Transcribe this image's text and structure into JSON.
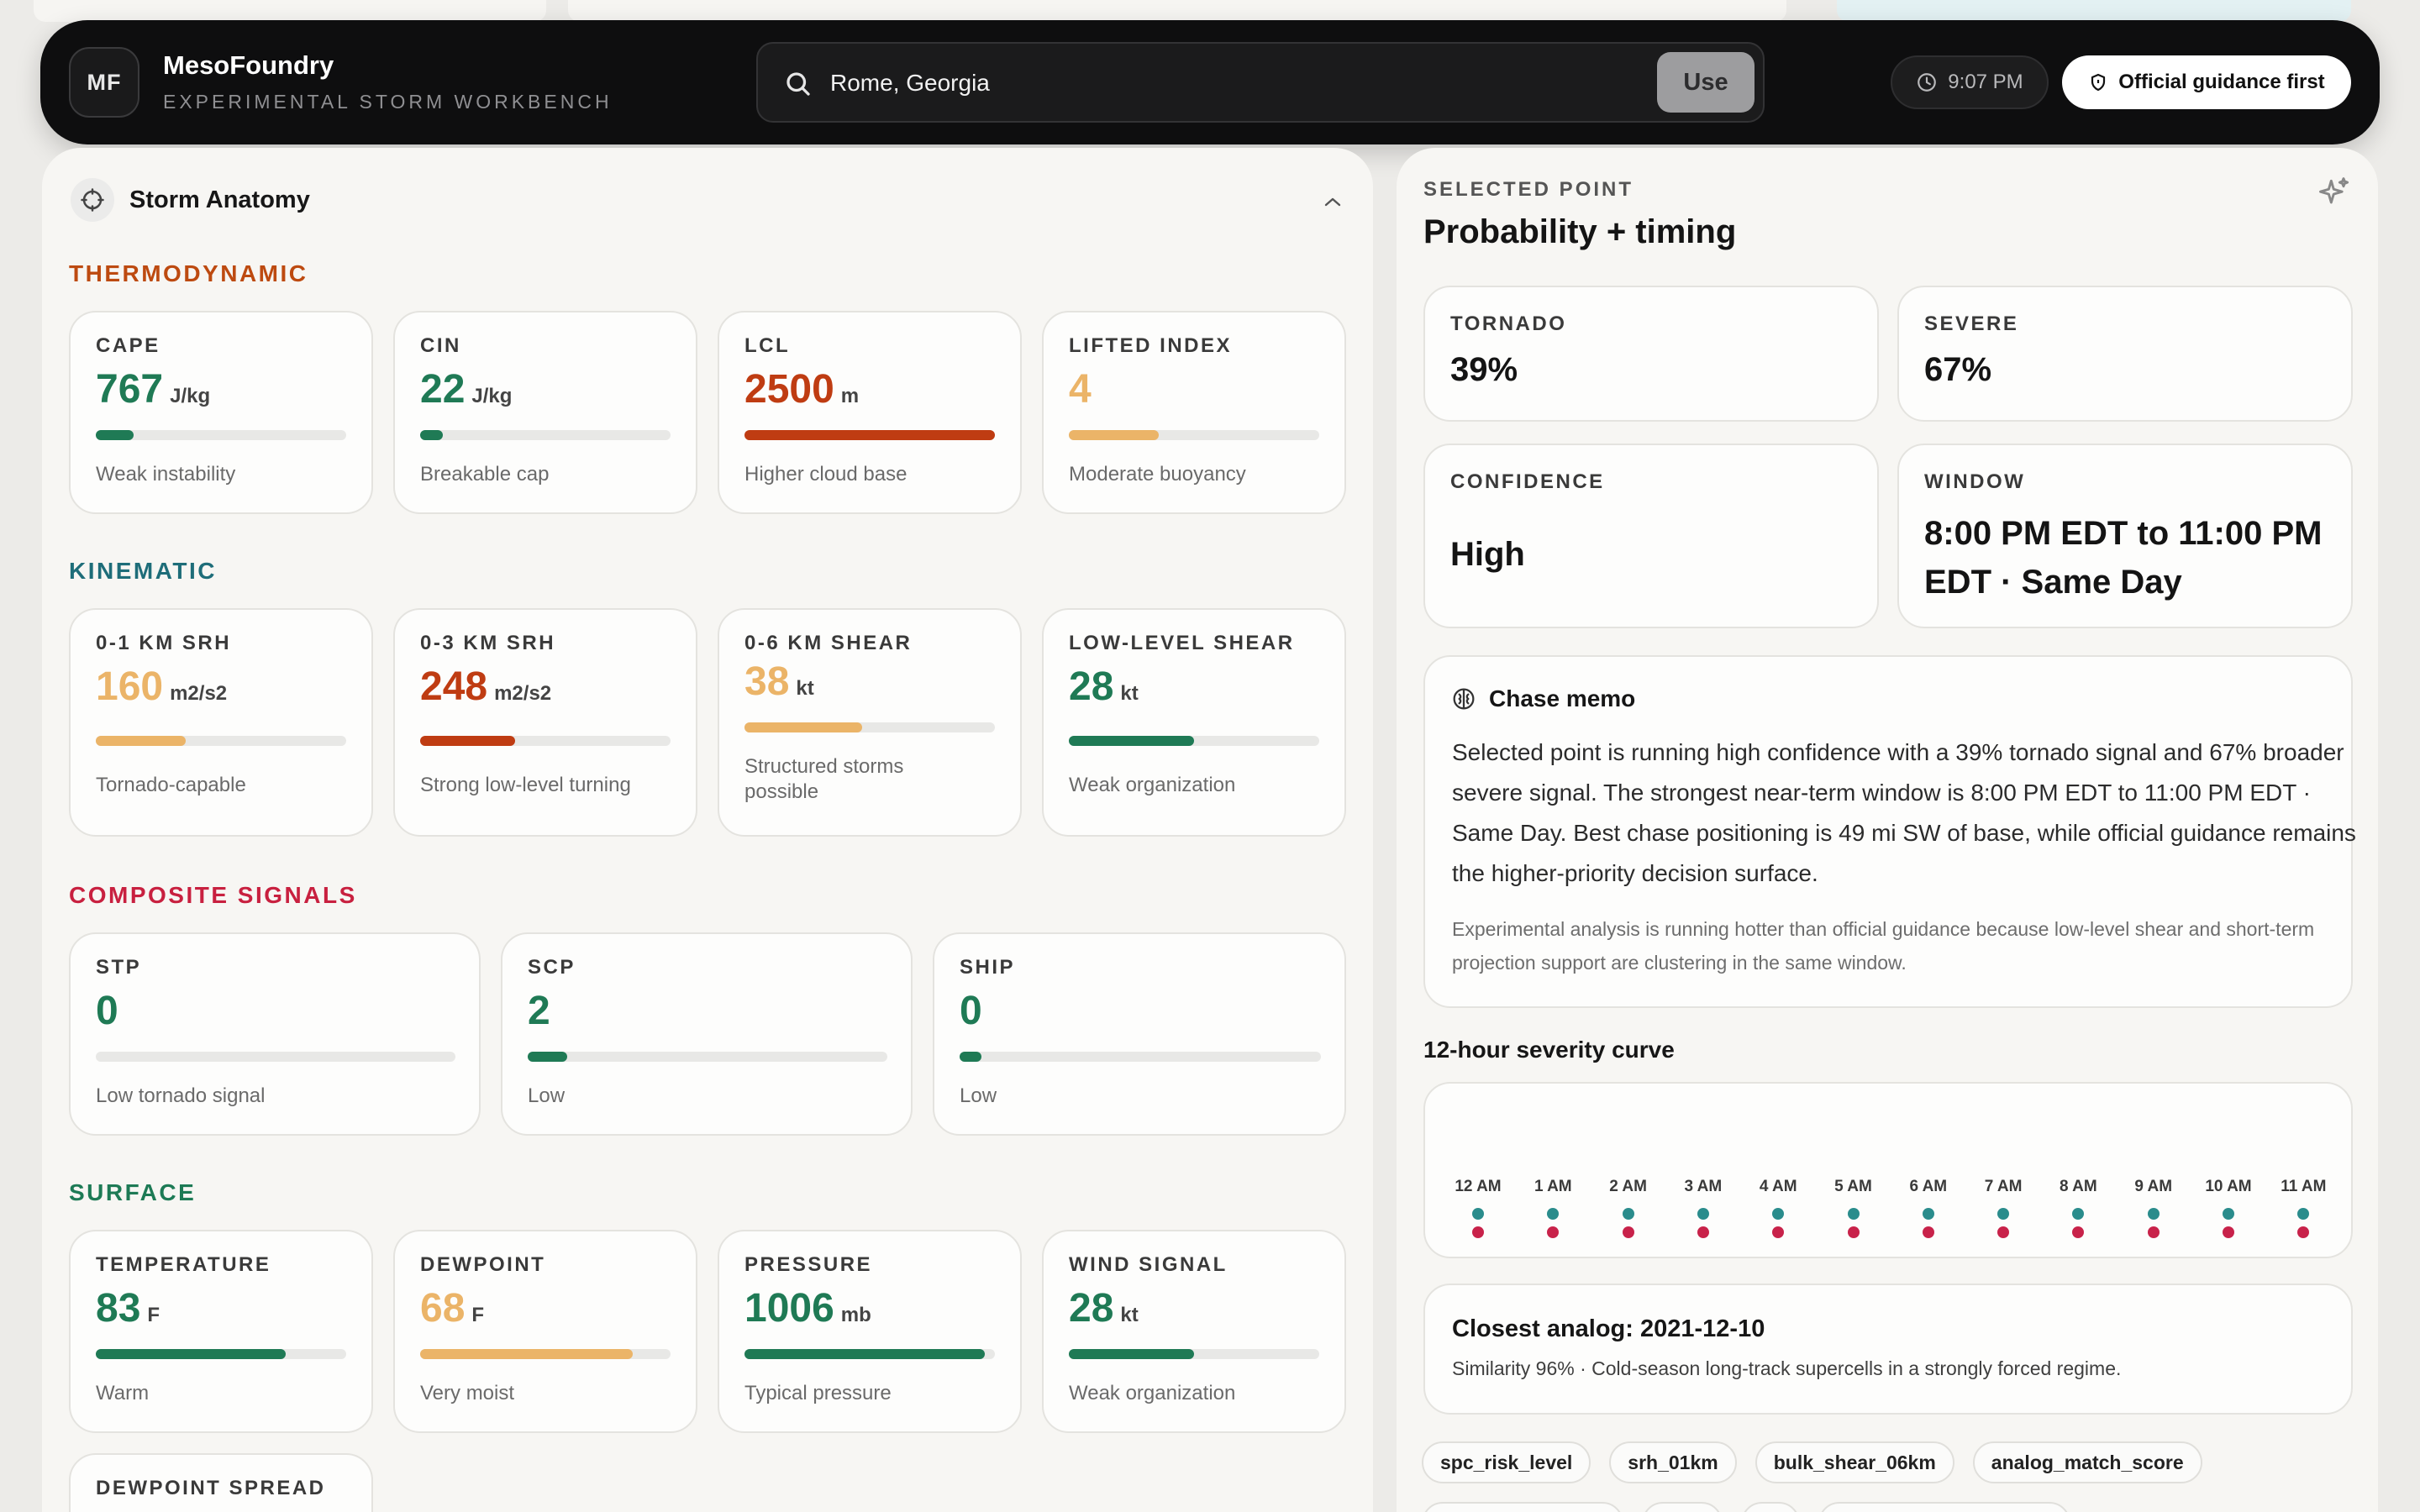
{
  "colors": {
    "green": "#1f7a55",
    "orange": "#ebb468",
    "rust": "#bf3c12",
    "teal_label": "#1e6d79",
    "crimson_label": "#c8203f",
    "surface_label": "#1d7a55",
    "thermo_label": "#bd4a10",
    "dot_teal": "#2a8c8c",
    "dot_crimson": "#c8224a"
  },
  "brand": {
    "badge": "MF",
    "name": "MesoFoundry",
    "subtitle": "EXPERIMENTAL STORM WORKBENCH"
  },
  "search": {
    "value": "Rome, Georgia",
    "use_label": "Use"
  },
  "time": "9:07 PM",
  "guidance_button": "Official guidance first",
  "anatomy": {
    "title": "Storm Anatomy",
    "groups": {
      "thermodynamic": {
        "label": "THERMODYNAMIC",
        "cards": [
          {
            "label": "CAPE",
            "value": "767",
            "unit": "J/kg",
            "note": "Weak instability",
            "fill": 0.15,
            "color": "green"
          },
          {
            "label": "CIN",
            "value": "22",
            "unit": "J/kg",
            "note": "Breakable cap",
            "fill": 0.09,
            "color": "green"
          },
          {
            "label": "LCL",
            "value": "2500",
            "unit": "m",
            "note": "Higher cloud base",
            "fill": 1.0,
            "color": "rust"
          },
          {
            "label": "LIFTED INDEX",
            "value": "4",
            "unit": "",
            "note": "Moderate buoyancy",
            "fill": 0.36,
            "color": "orange"
          }
        ]
      },
      "kinematic": {
        "label": "KINEMATIC",
        "cards": [
          {
            "label": "0-1 KM SRH",
            "value": "160",
            "unit": "m2/s2",
            "note": "Tornado-capable",
            "fill": 0.36,
            "color": "orange"
          },
          {
            "label": "0-3 KM SRH",
            "value": "248",
            "unit": "m2/s2",
            "note": "Strong low-level turning",
            "fill": 0.38,
            "color": "rust"
          },
          {
            "label": "0-6 KM SHEAR",
            "value": "38",
            "unit": "kt",
            "note": "Structured storms possible",
            "fill": 0.47,
            "color": "orange"
          },
          {
            "label": "LOW-LEVEL SHEAR",
            "value": "28",
            "unit": "kt",
            "note": "Weak organization",
            "fill": 0.5,
            "color": "green"
          }
        ]
      },
      "composite": {
        "label": "COMPOSITE SIGNALS",
        "cards": [
          {
            "label": "STP",
            "value": "0",
            "unit": "",
            "note": "Low tornado signal",
            "fill": 0.0,
            "color": "green"
          },
          {
            "label": "SCP",
            "value": "2",
            "unit": "",
            "note": "Low",
            "fill": 0.11,
            "color": "green"
          },
          {
            "label": "SHIP",
            "value": "0",
            "unit": "",
            "note": "Low",
            "fill": 0.06,
            "color": "green"
          }
        ]
      },
      "surface": {
        "label": "SURFACE",
        "cards": [
          {
            "label": "TEMPERATURE",
            "value": "83",
            "unit": "F",
            "note": "Warm",
            "fill": 0.76,
            "color": "green"
          },
          {
            "label": "DEWPOINT",
            "value": "68",
            "unit": "F",
            "note": "Very moist",
            "fill": 0.85,
            "color": "orange"
          },
          {
            "label": "PRESSURE",
            "value": "1006",
            "unit": "mb",
            "note": "Typical pressure",
            "fill": 0.96,
            "color": "green"
          },
          {
            "label": "WIND SIGNAL",
            "value": "28",
            "unit": "kt",
            "note": "Weak organization",
            "fill": 0.5,
            "color": "green"
          }
        ]
      },
      "spread": {
        "label": "DEWPOINT SPREAD"
      }
    }
  },
  "selected": {
    "eyebrow": "SELECTED POINT",
    "title": "Probability + timing",
    "tornado": {
      "label": "TORNADO",
      "value": "39%"
    },
    "severe": {
      "label": "SEVERE",
      "value": "67%"
    },
    "confidence": {
      "label": "CONFIDENCE",
      "value": "High"
    },
    "window": {
      "label": "WINDOW",
      "line1": "8:00 PM EDT to 11:00 PM",
      "line2": "EDT · Same Day"
    }
  },
  "memo": {
    "title": "Chase memo",
    "body": "Selected point is running high confidence with a 39% tornado signal and 67% broader severe signal. The strongest near-term window is 8:00 PM EDT to 11:00 PM EDT · Same Day. Best chase positioning is 49 mi SW of base, while official guidance remains the higher-priority decision surface.",
    "footnote": "Experimental analysis is running hotter than official guidance because low-level shear and short-term projection support are clustering in the same window."
  },
  "curve": {
    "title": "12-hour severity curve",
    "hours": [
      "12 AM",
      "1 AM",
      "2 AM",
      "3 AM",
      "4 AM",
      "5 AM",
      "6 AM",
      "7 AM",
      "8 AM",
      "9 AM",
      "10 AM",
      "11 AM"
    ]
  },
  "analog": {
    "title": "Closest analog: 2021-12-10",
    "subtitle": "Similarity 96% · Cold-season long-track supercells in a strongly forced regime."
  },
  "tags": [
    "spc_risk_level",
    "srh_01km",
    "bulk_shear_06km",
    "analog_match_score"
  ]
}
